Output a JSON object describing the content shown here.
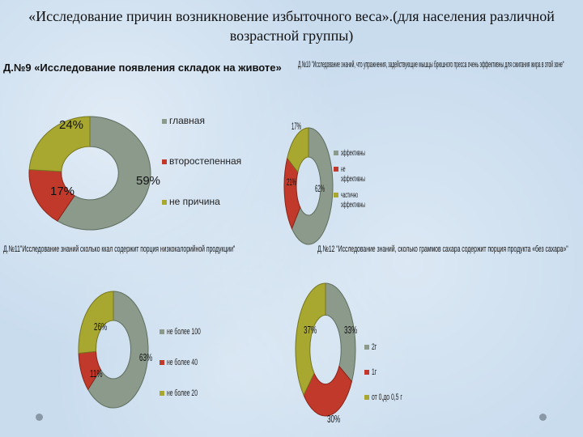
{
  "page_title": "«Исследование  причин возникновение избыточного веса».(для населения различной возрастной группы)",
  "colors": {
    "gray": "#8c9a8c",
    "red": "#c0392b",
    "olive": "#a8a830"
  },
  "chart_data": [
    {
      "type": "pie",
      "title": "Д.№9 «Исследование появления складок на животе»",
      "categories": [
        "главная",
        "второстепенная",
        "не причина"
      ],
      "values": [
        59,
        17,
        24
      ],
      "value_labels": [
        "59%",
        "17%",
        "24%"
      ],
      "legend": "right"
    },
    {
      "type": "pie",
      "title": "Д.№10 \"Исследование знаний, что упражнения, задействующие мышцы брюшного пресса очень эффективны для сжигания жира в этой зоне\"",
      "categories": [
        "эффективны",
        "не эффективны",
        "частично эффективны"
      ],
      "values": [
        62,
        21,
        17
      ],
      "value_labels": [
        "62%",
        "21%",
        "17%"
      ],
      "legend": "right"
    },
    {
      "type": "pie",
      "title": "Д.№11\"Исследование знаний сколько ккал содержит порция низкокалорийной продукции\"",
      "categories": [
        "не более 100",
        "не более 40",
        "не более 20"
      ],
      "values": [
        63,
        11,
        26
      ],
      "value_labels": [
        "63%",
        "11%",
        "26%"
      ],
      "legend": "right"
    },
    {
      "type": "pie",
      "title": "Д.№12 \"Исследование знаний, сколько граммов сахара содержит порция продукта «без сахара»\"",
      "categories": [
        "2г",
        "1г",
        "от 0,до 0,5 г"
      ],
      "values": [
        33,
        30,
        37
      ],
      "value_labels": [
        "33%",
        "30%",
        "37%"
      ],
      "legend": "right"
    }
  ]
}
